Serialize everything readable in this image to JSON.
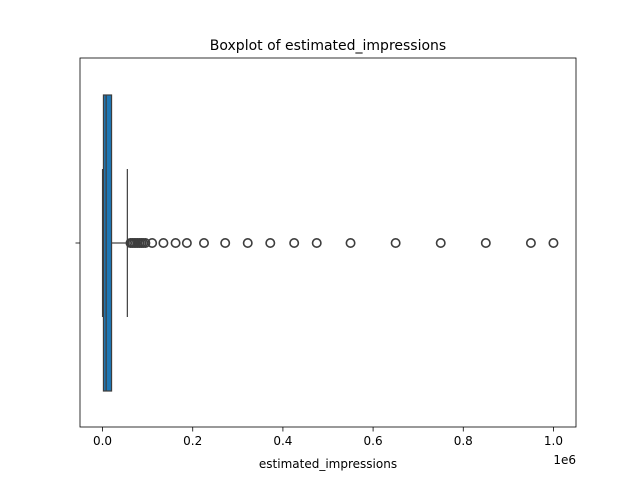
{
  "chart_data": {
    "type": "boxplot",
    "title": "Boxplot of estimated_impressions",
    "xlabel": "estimated_impressions",
    "ylabel": "",
    "x_offset_label": "1e6",
    "xlim": [
      -0.05,
      1.05
    ],
    "xticks": [
      0.0,
      0.2,
      0.4,
      0.6,
      0.8,
      1.0
    ],
    "xtick_labels": [
      "0.0",
      "0.2",
      "0.4",
      "0.6",
      "0.8",
      "1.0"
    ],
    "scale_multiplier": 1000000,
    "grid": false,
    "orientation": "horizontal",
    "box_color": "#1f77b4",
    "box": {
      "whisker_low": 0,
      "q1": 2000,
      "median": 8000,
      "q3": 20000,
      "whisker_high": 55000
    },
    "outliers": [
      62000,
      66000,
      70000,
      74000,
      78000,
      82000,
      86000,
      90000,
      95000,
      110000,
      135000,
      162000,
      187000,
      225000,
      272000,
      322000,
      372000,
      425000,
      475000,
      550000,
      650000,
      750000,
      850000,
      950000,
      1000000
    ]
  }
}
